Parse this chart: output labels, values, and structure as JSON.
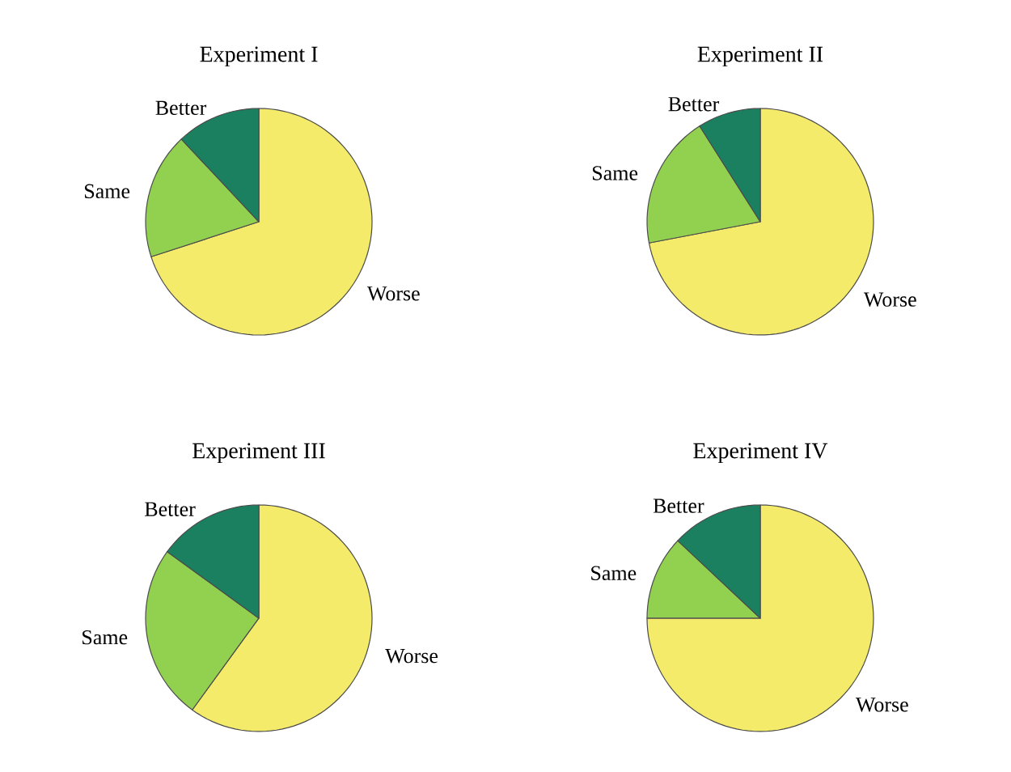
{
  "chart_data": [
    {
      "type": "pie",
      "title": "Experiment I",
      "categories": [
        "Worse",
        "Same",
        "Better"
      ],
      "values": [
        70,
        18,
        12
      ],
      "colors": [
        "#f5eb6a",
        "#92d050",
        "#1a8060"
      ]
    },
    {
      "type": "pie",
      "title": "Experiment II",
      "categories": [
        "Worse",
        "Same",
        "Better"
      ],
      "values": [
        72,
        19,
        9
      ],
      "colors": [
        "#f5eb6a",
        "#92d050",
        "#1a8060"
      ]
    },
    {
      "type": "pie",
      "title": "Experiment III",
      "categories": [
        "Worse",
        "Same",
        "Better"
      ],
      "values": [
        60,
        25,
        15
      ],
      "colors": [
        "#f5eb6a",
        "#92d050",
        "#1a8060"
      ]
    },
    {
      "type": "pie",
      "title": "Experiment IV",
      "categories": [
        "Worse",
        "Same",
        "Better"
      ],
      "values": [
        75,
        12,
        13
      ],
      "colors": [
        "#f5eb6a",
        "#92d050",
        "#1a8060"
      ]
    }
  ]
}
